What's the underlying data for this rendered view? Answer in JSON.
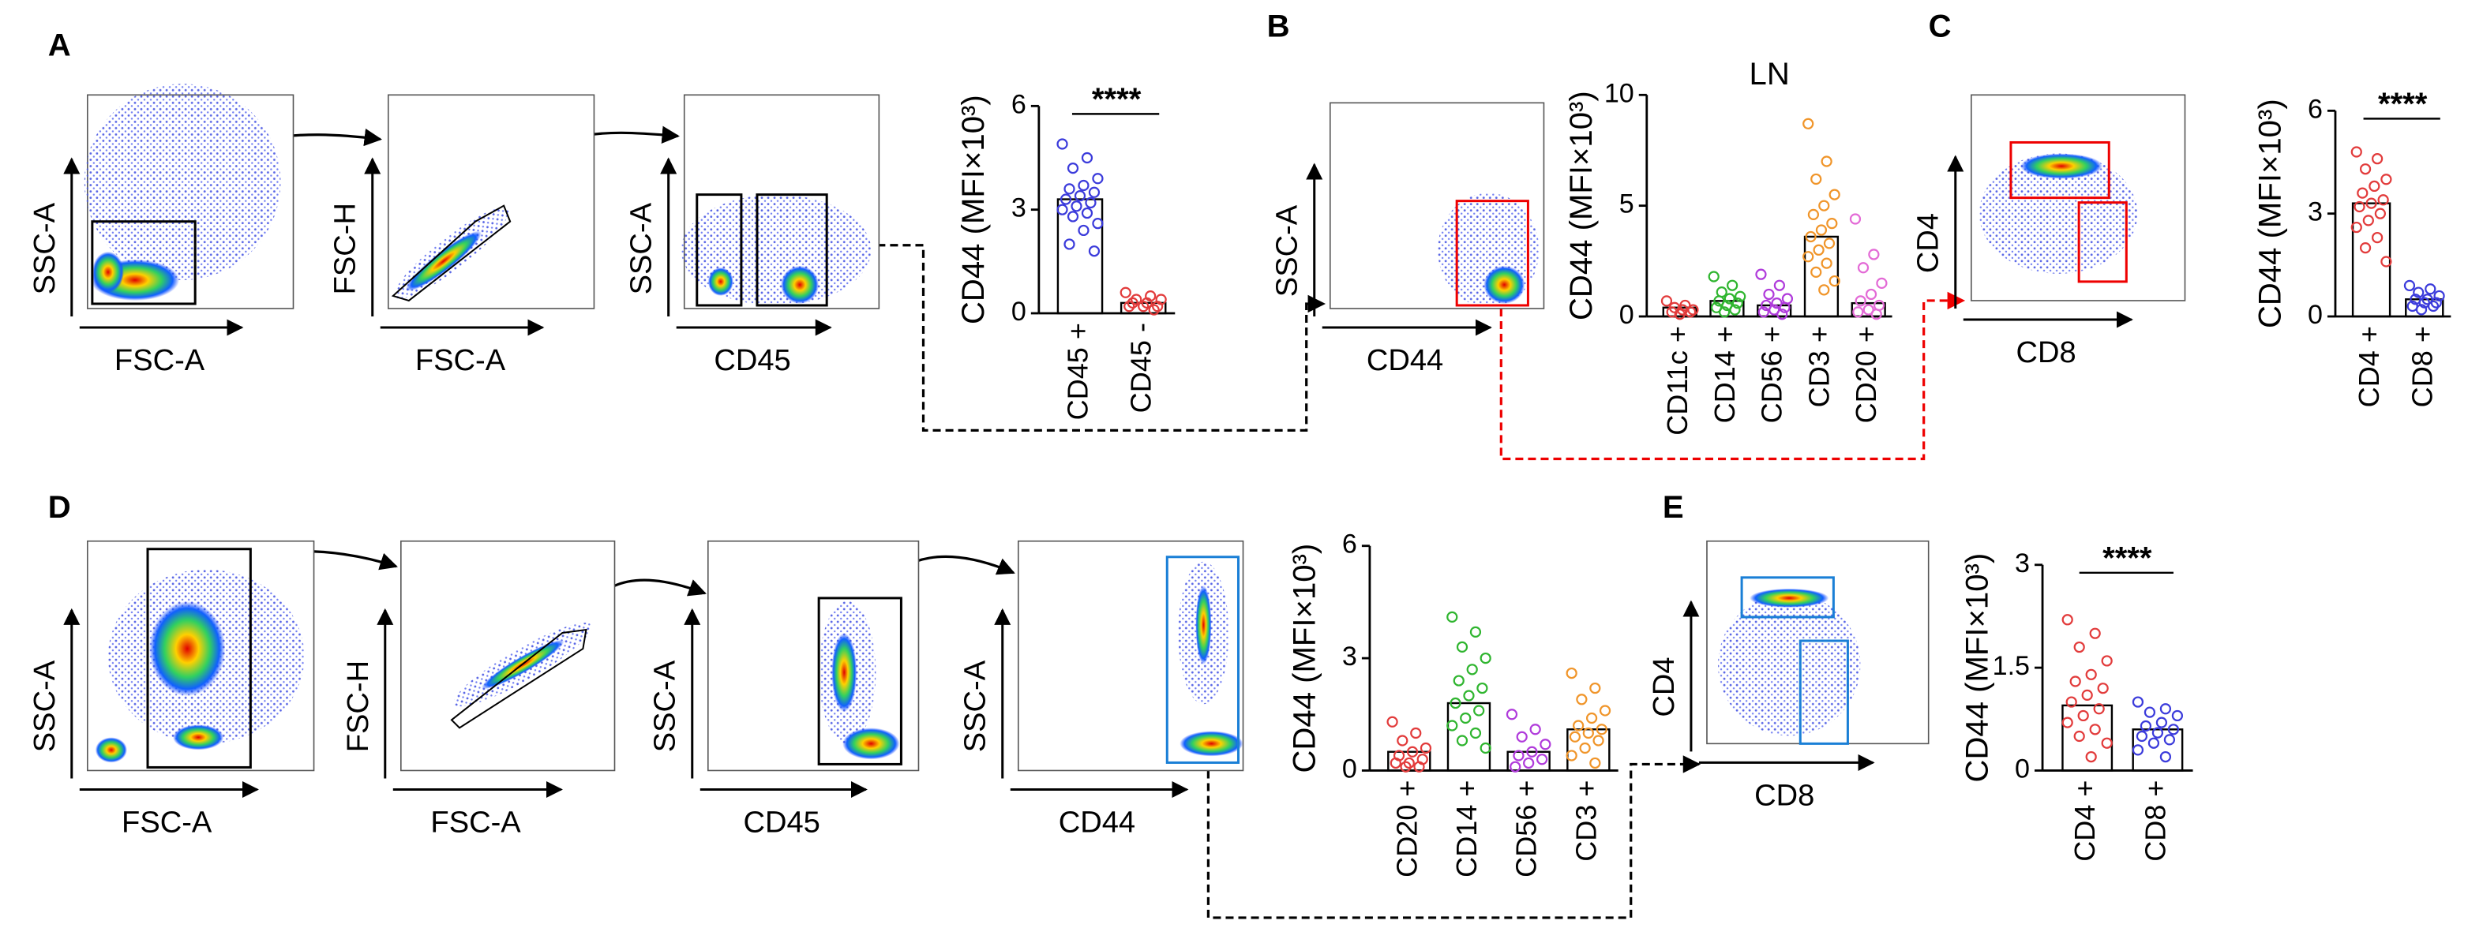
{
  "panels": [
    "A",
    "B",
    "C",
    "D",
    "E"
  ],
  "flow_plots": [
    {
      "x_label": "FSC-A",
      "y_label": "SSC-A"
    },
    {
      "x_label": "FSC-A",
      "y_label": "FSC-H"
    },
    {
      "x_label": "CD45",
      "y_label": "SSC-A"
    },
    {
      "x_label": "CD44",
      "y_label": "SSC-A"
    },
    {
      "x_label": "CD8",
      "y_label": "CD4"
    },
    {
      "x_label": "FSC-A",
      "y_label": "SSC-A"
    },
    {
      "x_label": "FSC-A",
      "y_label": "FSC-H"
    },
    {
      "x_label": "CD45",
      "y_label": "SSC-A"
    },
    {
      "x_label": "CD44",
      "y_label": "SSC-A"
    },
    {
      "x_label": "CD8",
      "y_label": "CD4"
    }
  ],
  "chart_data": [
    {
      "type": "bar",
      "ylabel": "CD44 (MFI×10³)",
      "categories": [
        "CD45 +",
        "CD45 -"
      ],
      "colors": [
        "#3b3bdb",
        "#e23b3b"
      ],
      "values": [
        3.3,
        0.3
      ],
      "points": [
        [
          4.9,
          4.5,
          4.2,
          3.9,
          3.7,
          3.6,
          3.5,
          3.4,
          3.3,
          3.2,
          3.1,
          3.0,
          2.9,
          2.8,
          2.6,
          2.4,
          2.0,
          1.8
        ],
        [
          0.6,
          0.5,
          0.4,
          0.4,
          0.3,
          0.3,
          0.2,
          0.2,
          0.2,
          0.1
        ]
      ],
      "ylim": [
        0,
        6
      ],
      "yticks": [
        0,
        3,
        6
      ],
      "annotation": "****"
    },
    {
      "type": "bar",
      "title": "LN",
      "ylabel": "CD44 (MFI×10³)",
      "categories": [
        "CD11c +",
        "CD14 +",
        "CD56 +",
        "CD3 +",
        "CD20 +"
      ],
      "colors": [
        "#e23b3b",
        "#2fb52f",
        "#b03bdb",
        "#f0952a",
        "#e36ad6"
      ],
      "values": [
        0.4,
        0.7,
        0.5,
        3.6,
        0.6
      ],
      "points": [
        [
          0.7,
          0.5,
          0.4,
          0.3,
          0.3,
          0.2,
          0.2,
          0.1
        ],
        [
          1.8,
          1.4,
          1.1,
          0.9,
          0.8,
          0.7,
          0.6,
          0.5,
          0.4,
          0.3,
          0.2
        ],
        [
          1.9,
          1.4,
          1.0,
          0.8,
          0.6,
          0.5,
          0.4,
          0.3,
          0.2,
          0.1
        ],
        [
          8.7,
          7.0,
          6.2,
          5.5,
          5.0,
          4.6,
          4.2,
          3.9,
          3.6,
          3.3,
          3.0,
          2.7,
          2.4,
          2.0,
          1.6,
          1.2
        ],
        [
          4.4,
          2.8,
          2.2,
          1.5,
          1.0,
          0.7,
          0.5,
          0.3,
          0.2,
          0.1
        ]
      ],
      "ylim": [
        0,
        10
      ],
      "yticks": [
        0,
        5,
        10
      ]
    },
    {
      "type": "bar",
      "ylabel": "CD44 (MFI×10³)",
      "categories": [
        "CD4 +",
        "CD8 +"
      ],
      "colors": [
        "#e23b3b",
        "#3b3bdb"
      ],
      "values": [
        3.3,
        0.5
      ],
      "points": [
        [
          4.8,
          4.6,
          4.3,
          4.0,
          3.8,
          3.6,
          3.4,
          3.3,
          3.2,
          3.0,
          2.8,
          2.6,
          2.3,
          2.0,
          1.6
        ],
        [
          0.9,
          0.8,
          0.7,
          0.6,
          0.5,
          0.5,
          0.4,
          0.4,
          0.3,
          0.3,
          0.2
        ]
      ],
      "ylim": [
        0,
        6
      ],
      "yticks": [
        0,
        3,
        6
      ],
      "annotation": "****"
    },
    {
      "type": "bar",
      "ylabel": "CD44 (MFI×10³)",
      "categories": [
        "CD20 +",
        "CD14 +",
        "CD56 +",
        "CD3 +"
      ],
      "colors": [
        "#e23b3b",
        "#2fb52f",
        "#b03bdb",
        "#f0952a"
      ],
      "values": [
        0.5,
        1.8,
        0.5,
        1.1
      ],
      "points": [
        [
          1.3,
          1.0,
          0.8,
          0.6,
          0.5,
          0.4,
          0.3,
          0.2,
          0.2,
          0.1,
          0.1
        ],
        [
          4.1,
          3.7,
          3.3,
          3.0,
          2.7,
          2.4,
          2.2,
          2.0,
          1.8,
          1.6,
          1.4,
          1.2,
          1.0,
          0.8,
          0.6
        ],
        [
          1.5,
          1.1,
          0.9,
          0.7,
          0.5,
          0.4,
          0.3,
          0.2,
          0.1
        ],
        [
          2.6,
          2.2,
          1.9,
          1.6,
          1.4,
          1.2,
          1.1,
          1.0,
          0.9,
          0.8,
          0.6,
          0.4,
          0.2
        ]
      ],
      "ylim": [
        0,
        6
      ],
      "yticks": [
        0,
        3,
        6
      ]
    },
    {
      "type": "bar",
      "ylabel": "CD44 (MFI×10³)",
      "categories": [
        "CD4 +",
        "CD8 +"
      ],
      "colors": [
        "#e23b3b",
        "#3b3bdb"
      ],
      "values": [
        0.95,
        0.6
      ],
      "points": [
        [
          2.2,
          2.0,
          1.8,
          1.6,
          1.4,
          1.3,
          1.2,
          1.1,
          1.0,
          0.9,
          0.8,
          0.7,
          0.6,
          0.5,
          0.4,
          0.2
        ],
        [
          1.0,
          0.9,
          0.85,
          0.8,
          0.7,
          0.65,
          0.6,
          0.55,
          0.5,
          0.45,
          0.4,
          0.3,
          0.2
        ]
      ],
      "ylim": [
        0,
        3
      ],
      "yticks": [
        0,
        1.5,
        3
      ],
      "annotation": "****"
    }
  ]
}
